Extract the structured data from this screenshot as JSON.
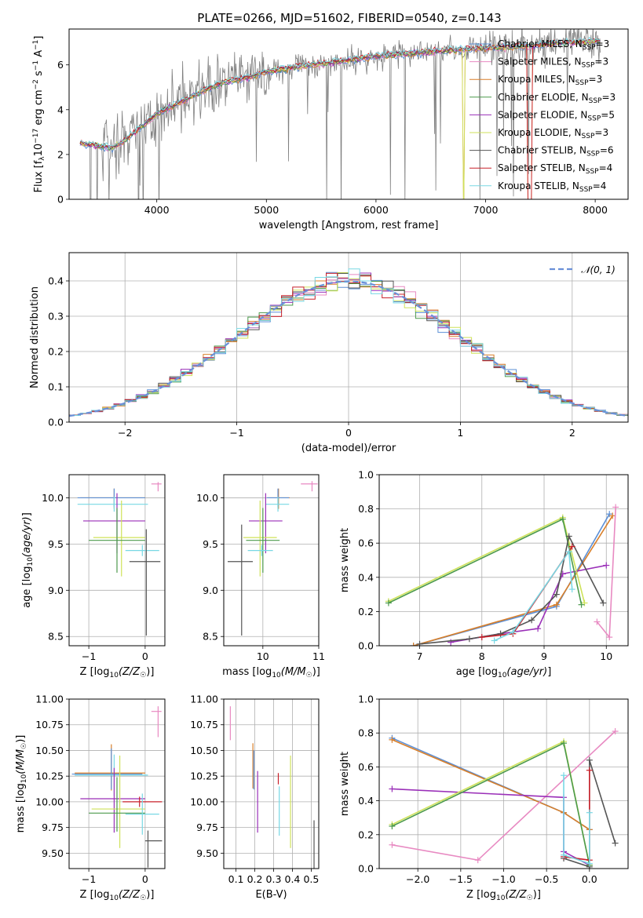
{
  "figure_title": "PLATE=0266, MJD=51602, FIBERID=0540, z=0.143",
  "colors": {
    "Chabrier MILES": "#5b8fd6",
    "Salpeter MILES": "#e88ac2",
    "Kroupa MILES": "#d87f2a",
    "Chabrier ELODIE": "#4c9a4c",
    "Salpeter ELODIE": "#9a2fb8",
    "Kroupa ELODIE": "#cfe25a",
    "Chabrier STELIB": "#555555",
    "Salpeter STELIB": "#c8202a",
    "Kroupa STELIB": "#78d8e4",
    "data": "#808080",
    "normal": "#6a90d8",
    "grid": "#b0b0b0"
  },
  "chart_data": [
    {
      "id": "spectrum",
      "type": "line",
      "xlabel": "wavelength [Angstrom, rest frame]",
      "ylabel": "Flux [f_λ 10^-17 erg cm^-2 s^-1 A^-1]",
      "xlim": [
        3200,
        8300
      ],
      "ylim": [
        0,
        7.6
      ],
      "xticks": [
        4000,
        5000,
        6000,
        7000,
        8000
      ],
      "yticks": [
        0,
        2,
        4,
        6
      ],
      "grid": false,
      "legend_position": "top-right",
      "legend": [
        {
          "name": "Chabrier MILES",
          "nssp": "3"
        },
        {
          "name": "Salpeter MILES",
          "nssp": "3"
        },
        {
          "name": "Kroupa MILES",
          "nssp": "3"
        },
        {
          "name": "Chabrier ELODIE",
          "nssp": "3"
        },
        {
          "name": "Salpeter ELODIE",
          "nssp": "5"
        },
        {
          "name": "Kroupa ELODIE",
          "nssp": "3"
        },
        {
          "name": "Chabrier STELIB",
          "nssp": "6"
        },
        {
          "name": "Salpeter STELIB",
          "nssp": "4"
        },
        {
          "name": "Kroupa STELIB",
          "nssp": "4"
        }
      ],
      "continuum": {
        "x": [
          3300,
          3400,
          3500,
          3600,
          3700,
          3800,
          3900,
          4000,
          4200,
          4400,
          4600,
          4800,
          5000,
          5200,
          5400,
          5600,
          5800,
          6000,
          6200,
          6400,
          6600,
          6800,
          7000,
          7200,
          7400,
          7600,
          7800,
          8000
        ],
        "y": [
          2.5,
          2.45,
          2.35,
          2.3,
          2.6,
          3.0,
          3.4,
          3.8,
          4.3,
          4.8,
          5.2,
          5.4,
          5.7,
          5.85,
          6.0,
          6.1,
          6.25,
          6.4,
          6.45,
          6.55,
          6.6,
          6.7,
          6.75,
          6.8,
          6.85,
          6.95,
          7.0,
          7.05
        ]
      }
    },
    {
      "id": "residuals",
      "type": "line",
      "xlabel": "(data-model)/error",
      "ylabel": "Normed distribution",
      "xlim": [
        -2.5,
        2.5
      ],
      "ylim": [
        0,
        0.48
      ],
      "xticks": [
        -2,
        -1,
        0,
        1,
        2
      ],
      "yticks": [
        0.0,
        0.1,
        0.2,
        0.3,
        0.4
      ],
      "grid": true,
      "legend_position": "top-right",
      "legend": [
        {
          "name": "N(0,1)"
        }
      ],
      "series": [
        {
          "name": "Normal",
          "function": "standard normal pdf"
        }
      ]
    },
    {
      "id": "age-vs-Z",
      "type": "scatter",
      "xlabel": "Z [log10(Z/Z☉)]",
      "ylabel": "age [log10(age/yr)]",
      "xlim": [
        -1.35,
        0.35
      ],
      "ylim": [
        8.4,
        10.25
      ],
      "xticks": [
        -1,
        0
      ],
      "yticks": [
        8.5,
        9.0,
        9.5,
        10.0
      ],
      "grid": true,
      "points": [
        {
          "model": "Salpeter MILES",
          "x": 0.23,
          "y": 10.15,
          "xerr": [
            0.12,
            0.06
          ],
          "yerr": [
            0.08,
            0.02
          ]
        },
        {
          "model": "Kroupa MILES",
          "x": -0.55,
          "y": 10.0,
          "xerr": [
            0.6,
            0.55
          ],
          "yerr": [
            0.12,
            0.1
          ]
        },
        {
          "model": "Chabrier MILES",
          "x": -0.55,
          "y": 10.0,
          "xerr": [
            0.65,
            0.55
          ],
          "yerr": [
            0.1,
            0.1
          ]
        },
        {
          "model": "Kroupa STELIB",
          "x": -0.55,
          "y": 9.93,
          "xerr": [
            0.65,
            0.6
          ],
          "yerr": [
            0.08,
            0.08
          ]
        },
        {
          "model": "Salpeter ELODIE",
          "x": -0.5,
          "y": 9.75,
          "xerr": [
            0.6,
            0.5
          ],
          "yerr": [
            0.35,
            0.3
          ]
        },
        {
          "model": "Kroupa ELODIE",
          "x": -0.42,
          "y": 9.57,
          "xerr": [
            0.5,
            0.42
          ],
          "yerr": [
            0.42,
            0.4
          ]
        },
        {
          "model": "Chabrier ELODIE",
          "x": -0.5,
          "y": 9.54,
          "xerr": [
            0.5,
            0.5
          ],
          "yerr": [
            0.35,
            0.35
          ]
        },
        {
          "model": "Kroupa STELIB (2)",
          "x": -0.05,
          "y": 9.43,
          "xerr": [
            0.3,
            0.3
          ],
          "yerr": [
            0.06,
            0.06
          ]
        },
        {
          "model": "Chabrier STELIB",
          "x": 0.02,
          "y": 9.31,
          "xerr": [
            0.3,
            0.25
          ],
          "yerr": [
            0.8,
            0.35
          ]
        }
      ]
    },
    {
      "id": "age-vs-mass",
      "type": "scatter",
      "xlabel": "mass [log10(M/M☉)]",
      "ylabel": "",
      "xlim": [
        9.3,
        11.0
      ],
      "ylim": [
        8.4,
        10.25
      ],
      "xticks": [
        10,
        11
      ],
      "yticks": [
        8.5,
        9.0,
        9.5,
        10.0
      ],
      "grid": true,
      "points": [
        {
          "model": "Salpeter MILES",
          "x": 10.88,
          "y": 10.15,
          "xerr": [
            0.2,
            0.1
          ],
          "yerr": [
            0.08,
            0.03
          ]
        },
        {
          "model": "Kroupa MILES",
          "x": 10.28,
          "y": 10.0,
          "xerr": [
            0.2,
            0.2
          ],
          "yerr": [
            0.12,
            0.1
          ]
        },
        {
          "model": "Chabrier MILES",
          "x": 10.27,
          "y": 10.0,
          "xerr": [
            0.2,
            0.2
          ],
          "yerr": [
            0.1,
            0.1
          ]
        },
        {
          "model": "Kroupa STELIB",
          "x": 10.27,
          "y": 9.93,
          "xerr": [
            0.22,
            0.2
          ],
          "yerr": [
            0.08,
            0.08
          ]
        },
        {
          "model": "Salpeter ELODIE",
          "x": 10.05,
          "y": 9.75,
          "xerr": [
            0.3,
            0.3
          ],
          "yerr": [
            0.35,
            0.3
          ]
        },
        {
          "model": "Kroupa ELODIE",
          "x": 9.95,
          "y": 9.57,
          "xerr": [
            0.3,
            0.3
          ],
          "yerr": [
            0.42,
            0.4
          ]
        },
        {
          "model": "Chabrier ELODIE",
          "x": 10.0,
          "y": 9.54,
          "xerr": [
            0.3,
            0.3
          ],
          "yerr": [
            0.35,
            0.35
          ]
        },
        {
          "model": "Kroupa STELIB (2)",
          "x": 9.98,
          "y": 9.43,
          "xerr": [
            0.25,
            0.2
          ],
          "yerr": [
            0.06,
            0.06
          ]
        },
        {
          "model": "Chabrier STELIB",
          "x": 9.62,
          "y": 9.31,
          "xerr": [
            0.25,
            0.2
          ],
          "yerr": [
            0.8,
            0.4
          ]
        }
      ]
    },
    {
      "id": "weight-vs-age",
      "type": "line",
      "xlabel": "age [log10(age/yr)]",
      "ylabel": "mass weight",
      "xlim": [
        6.35,
        10.35
      ],
      "ylim": [
        0.0,
        1.0
      ],
      "xticks": [
        7,
        8,
        9,
        10
      ],
      "yticks": [
        0.0,
        0.2,
        0.4,
        0.6,
        0.8,
        1.0
      ],
      "grid": true,
      "series": [
        {
          "name": "Chabrier MILES",
          "x": [
            6.9,
            9.2,
            10.05
          ],
          "y": [
            0.0,
            0.23,
            0.77
          ]
        },
        {
          "name": "Kroupa MILES",
          "x": [
            6.9,
            9.2,
            10.1
          ],
          "y": [
            0.0,
            0.24,
            0.76
          ]
        },
        {
          "name": "Salpeter MILES",
          "x": [
            9.85,
            10.05,
            10.15
          ],
          "y": [
            0.14,
            0.05,
            0.81
          ]
        },
        {
          "name": "Salpeter ELODIE",
          "x": [
            7.5,
            8.3,
            8.9,
            9.3,
            10.0
          ],
          "y": [
            0.02,
            0.07,
            0.1,
            0.42,
            0.47
          ]
        },
        {
          "name": "Kroupa ELODIE",
          "x": [
            6.5,
            9.3,
            9.65
          ],
          "y": [
            0.26,
            0.75,
            0.25
          ]
        },
        {
          "name": "Chabrier ELODIE",
          "x": [
            6.5,
            9.3,
            9.6
          ],
          "y": [
            0.25,
            0.74,
            0.24
          ]
        },
        {
          "name": "Chabrier STELIB",
          "x": [
            7.0,
            7.8,
            8.3,
            8.8,
            9.2,
            9.4,
            9.95
          ],
          "y": [
            0.01,
            0.04,
            0.07,
            0.15,
            0.3,
            0.64,
            0.25
          ]
        },
        {
          "name": "Salpeter STELIB",
          "x": [
            8.0,
            8.5,
            9.45
          ],
          "y": [
            0.05,
            0.07,
            0.58
          ]
        },
        {
          "name": "Kroupa STELIB",
          "x": [
            8.2,
            8.5,
            9.4,
            9.45
          ],
          "y": [
            0.03,
            0.08,
            0.55,
            0.33
          ]
        }
      ]
    },
    {
      "id": "mass-vs-Z",
      "type": "scatter",
      "xlabel": "Z [log10(Z/Z☉)]",
      "ylabel": "mass [log10(M/M☉)]",
      "xlim": [
        -1.35,
        0.35
      ],
      "ylim": [
        9.35,
        11.0
      ],
      "xticks": [
        -1,
        0
      ],
      "yticks": [
        9.5,
        9.75,
        10.0,
        10.25,
        10.5,
        10.75,
        11.0
      ],
      "grid": true,
      "points": [
        {
          "model": "Salpeter MILES",
          "x": 0.23,
          "y": 10.88,
          "xerr": [
            0.12,
            0.06
          ],
          "yerr": [
            0.25,
            0.05
          ]
        },
        {
          "model": "Kroupa MILES",
          "x": -0.6,
          "y": 10.28,
          "xerr": [
            0.65,
            0.6
          ],
          "yerr": [
            0.17,
            0.28
          ]
        },
        {
          "model": "Chabrier MILES",
          "x": -0.6,
          "y": 10.27,
          "xerr": [
            0.7,
            0.55
          ],
          "yerr": [
            0.15,
            0.25
          ]
        },
        {
          "model": "Kroupa STELIB",
          "x": -0.55,
          "y": 10.26,
          "xerr": [
            0.7,
            0.6
          ],
          "yerr": [
            0.2,
            0.2
          ]
        },
        {
          "model": "Salpeter ELODIE",
          "x": -0.55,
          "y": 10.03,
          "xerr": [
            0.6,
            0.55
          ],
          "yerr": [
            0.33,
            0.3
          ]
        },
        {
          "model": "Kroupa ELODIE",
          "x": -0.45,
          "y": 9.93,
          "xerr": [
            0.5,
            0.45
          ],
          "yerr": [
            0.38,
            0.52
          ]
        },
        {
          "model": "Chabrier ELODIE",
          "x": -0.5,
          "y": 9.89,
          "xerr": [
            0.5,
            0.5
          ],
          "yerr": [
            0.18,
            0.35
          ]
        },
        {
          "model": "Salpeter STELIB",
          "x": -0.1,
          "y": 10.0,
          "xerr": [
            0.3,
            0.4
          ],
          "yerr": [
            0.05,
            0.05
          ]
        },
        {
          "model": "Kroupa STELIB (2)",
          "x": -0.05,
          "y": 9.88,
          "xerr": [
            0.3,
            0.3
          ],
          "yerr": [
            0.2,
            0.2
          ]
        },
        {
          "model": "Chabrier STELIB",
          "x": 0.05,
          "y": 9.62,
          "xerr": [
            0.05,
            0.25
          ],
          "yerr": [
            0.26,
            0.1
          ]
        }
      ]
    },
    {
      "id": "mass-vs-EBV",
      "type": "scatter",
      "xlabel": "E(B-V)",
      "ylabel": "",
      "xlim": [
        0.035,
        0.54
      ],
      "ylim": [
        9.35,
        11.0
      ],
      "xticks": [
        0.1,
        0.2,
        0.3,
        0.4,
        0.5
      ],
      "yticks": [
        9.5,
        9.75,
        10.0,
        10.25,
        10.5,
        10.75,
        11.0
      ],
      "grid": true,
      "points": [
        {
          "model": "Salpeter MILES",
          "x": 0.07,
          "y": 10.75,
          "yerr": [
            0.15,
            0.18
          ]
        },
        {
          "model": "Kroupa MILES",
          "x": 0.19,
          "y": 10.35,
          "yerr": [
            0.22,
            0.22
          ]
        },
        {
          "model": "Chabrier MILES",
          "x": 0.195,
          "y": 10.3,
          "yerr": [
            0.18,
            0.2
          ]
        },
        {
          "model": "Salpeter ELODIE",
          "x": 0.215,
          "y": 10.0,
          "yerr": [
            0.3,
            0.3
          ]
        },
        {
          "model": "Salpeter STELIB",
          "x": 0.325,
          "y": 10.22,
          "yerr": [
            0.05,
            0.06
          ]
        },
        {
          "model": "Kroupa STELIB",
          "x": 0.33,
          "y": 9.95,
          "yerr": [
            0.28,
            0.2
          ]
        },
        {
          "model": "Kroupa ELODIE",
          "x": 0.39,
          "y": 10.05,
          "yerr": [
            0.5,
            0.4
          ]
        },
        {
          "model": "Chabrier STELIB",
          "x": 0.515,
          "y": 9.58,
          "yerr": [
            0.23,
            0.24
          ]
        }
      ]
    },
    {
      "id": "weight-vs-Z",
      "type": "line",
      "xlabel": "Z [log10(Z/Z☉)]",
      "ylabel": "mass weight",
      "xlim": [
        -2.45,
        0.45
      ],
      "ylim": [
        0.0,
        1.0
      ],
      "xticks": [
        -2.0,
        -1.5,
        -1.0,
        -0.5,
        0.0
      ],
      "yticks": [
        0.0,
        0.2,
        0.4,
        0.6,
        0.8,
        1.0
      ],
      "grid": true,
      "series": [
        {
          "name": "Chabrier MILES",
          "x": [
            -2.3,
            -0.3,
            0.0
          ],
          "y": [
            0.77,
            0.33,
            0.23
          ]
        },
        {
          "name": "Kroupa MILES",
          "x": [
            -2.3,
            -0.3,
            0.0
          ],
          "y": [
            0.76,
            0.33,
            0.23
          ]
        },
        {
          "name": "Salpeter MILES",
          "x": [
            -2.3,
            -1.3,
            0.3
          ],
          "y": [
            0.14,
            0.05,
            0.81
          ]
        },
        {
          "name": "Salpeter ELODIE",
          "x": [
            -2.3,
            -0.3,
            -0.3,
            0.0
          ],
          "y": [
            0.47,
            0.42,
            0.1,
            0.02
          ]
        },
        {
          "name": "Kroupa ELODIE",
          "x": [
            -2.3,
            -0.3,
            0.0
          ],
          "y": [
            0.26,
            0.75,
            0.02
          ]
        },
        {
          "name": "Chabrier ELODIE",
          "x": [
            -2.3,
            -0.3,
            0.0
          ],
          "y": [
            0.25,
            0.74,
            0.02
          ]
        },
        {
          "name": "Chabrier STELIB",
          "x": [
            -0.3,
            0.0,
            0.0,
            0.3
          ],
          "y": [
            0.06,
            0.01,
            0.64,
            0.15
          ]
        },
        {
          "name": "Salpeter STELIB",
          "x": [
            -0.3,
            0.0,
            0.0
          ],
          "y": [
            0.07,
            0.05,
            0.58
          ]
        },
        {
          "name": "Kroupa STELIB",
          "x": [
            -0.3,
            -0.3,
            0.0,
            0.0
          ],
          "y": [
            0.55,
            0.08,
            0.03,
            0.33
          ]
        }
      ]
    }
  ]
}
